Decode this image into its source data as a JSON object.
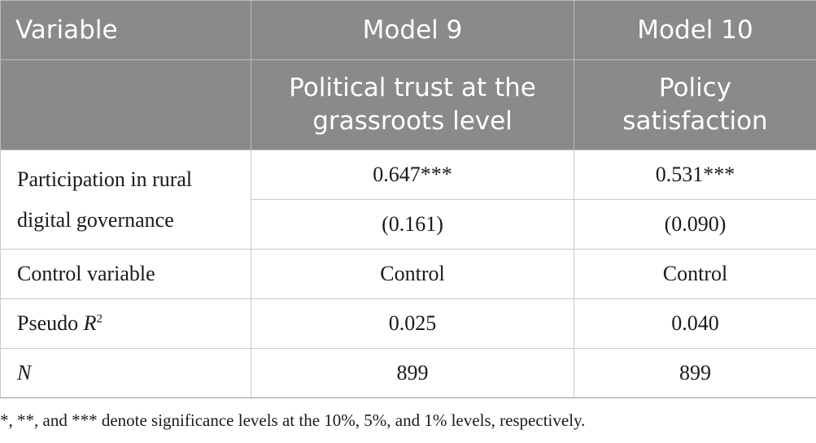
{
  "header": {
    "variable": "Variable",
    "model9": "Model 9",
    "model10": "Model 10",
    "model9_dep": "Political trust at the grassroots level",
    "model10_dep": "Policy satisfaction"
  },
  "rows": {
    "participation": {
      "label": "Participation in rural digital governance",
      "m9_coef": "0.647***",
      "m10_coef": "0.531***",
      "m9_se": "(0.161)",
      "m10_se": "(0.090)"
    },
    "control": {
      "label": "Control variable",
      "m9": "Control",
      "m10": "Control"
    },
    "pseudo_r2": {
      "label": "Pseudo ",
      "label_italic": "R",
      "label_sup": "2",
      "m9": "0.025",
      "m10": "0.040"
    },
    "n": {
      "label": "N",
      "m9": "899",
      "m10": "899"
    }
  },
  "note": "*, **, and *** denote significance levels at the 10%, 5%, and 1% levels, respectively."
}
